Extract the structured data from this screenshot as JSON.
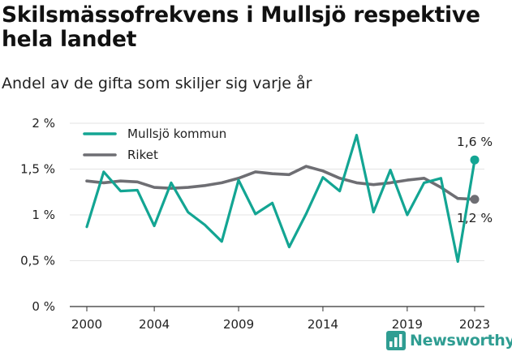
{
  "chart_data": {
    "type": "line",
    "title": "Skilsmässofrekvens i Mullsjö respektive hela landet",
    "subtitle": "Andel av de gifta som skiljer sig varje år",
    "x": [
      2000,
      2001,
      2002,
      2003,
      2004,
      2005,
      2006,
      2007,
      2008,
      2009,
      2010,
      2011,
      2012,
      2013,
      2014,
      2015,
      2016,
      2017,
      2018,
      2019,
      2020,
      2021,
      2022,
      2023
    ],
    "series": [
      {
        "name": "Mullsjö kommun",
        "color": "#13a593",
        "values": [
          0.87,
          1.47,
          1.26,
          1.27,
          0.88,
          1.35,
          1.03,
          0.89,
          0.71,
          1.38,
          1.01,
          1.13,
          0.65,
          1.01,
          1.41,
          1.26,
          1.87,
          1.03,
          1.49,
          1.0,
          1.35,
          1.4,
          0.49,
          1.6
        ]
      },
      {
        "name": "Riket",
        "color": "#6e6e73",
        "values": [
          1.37,
          1.35,
          1.37,
          1.36,
          1.3,
          1.29,
          1.3,
          1.32,
          1.35,
          1.4,
          1.47,
          1.45,
          1.44,
          1.53,
          1.48,
          1.4,
          1.35,
          1.33,
          1.35,
          1.38,
          1.4,
          1.3,
          1.18,
          1.17
        ]
      }
    ],
    "end_labels": [
      "1,6 %",
      "1,2 %"
    ],
    "ylim": [
      0,
      2
    ],
    "y_ticks": [
      0,
      0.5,
      1,
      1.5,
      2
    ],
    "y_tick_labels": [
      "0 %",
      "0,5 %",
      "1 %",
      "1,5 %",
      "2 %"
    ],
    "x_ticks": [
      2000,
      2004,
      2009,
      2014,
      2019,
      2023
    ],
    "x_tick_labels": [
      "2000",
      "2004",
      "2009",
      "2014",
      "2019",
      "2023"
    ],
    "grid": true,
    "legend_position": "top-left"
  },
  "brand": {
    "name": "Newsworthy",
    "logo_icon": "bar-chart-icon"
  }
}
